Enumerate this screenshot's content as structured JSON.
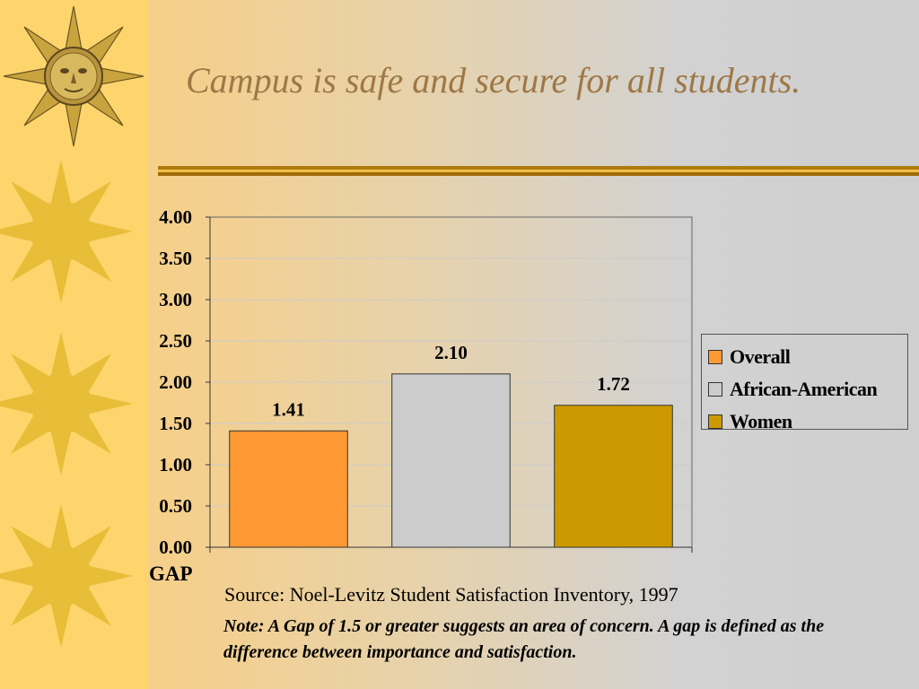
{
  "slide": {
    "title": "Campus is safe and secure for all students.",
    "source": "Source: Noel-Levitz Student Satisfaction Inventory, 1997",
    "note": "Note:  A Gap of 1.5 or greater suggests an area of concern.  A gap is defined as the difference between importance and satisfaction."
  },
  "decorations": {
    "top_icon": "sun-face-icon",
    "sun_icons": [
      "sun-icon",
      "sun-icon",
      "sun-icon"
    ],
    "sidebar_color": "#fed56c"
  },
  "chart_data": {
    "type": "bar",
    "title": "",
    "xlabel": "GAP",
    "ylabel": "",
    "ylim": [
      0,
      4
    ],
    "yticks": [
      "0.00",
      "0.50",
      "1.00",
      "1.50",
      "2.00",
      "2.50",
      "3.00",
      "3.50",
      "4.00"
    ],
    "grid": true,
    "legend_position": "right",
    "series": [
      {
        "name": "Overall",
        "values": [
          1.41
        ],
        "label": "1.41",
        "color": "#ff9933"
      },
      {
        "name": "African-American",
        "values": [
          2.1
        ],
        "label": "2.10",
        "color": "#cccccc"
      },
      {
        "name": "Women",
        "values": [
          1.72
        ],
        "label": "1.72",
        "color": "#cc9900"
      }
    ]
  }
}
